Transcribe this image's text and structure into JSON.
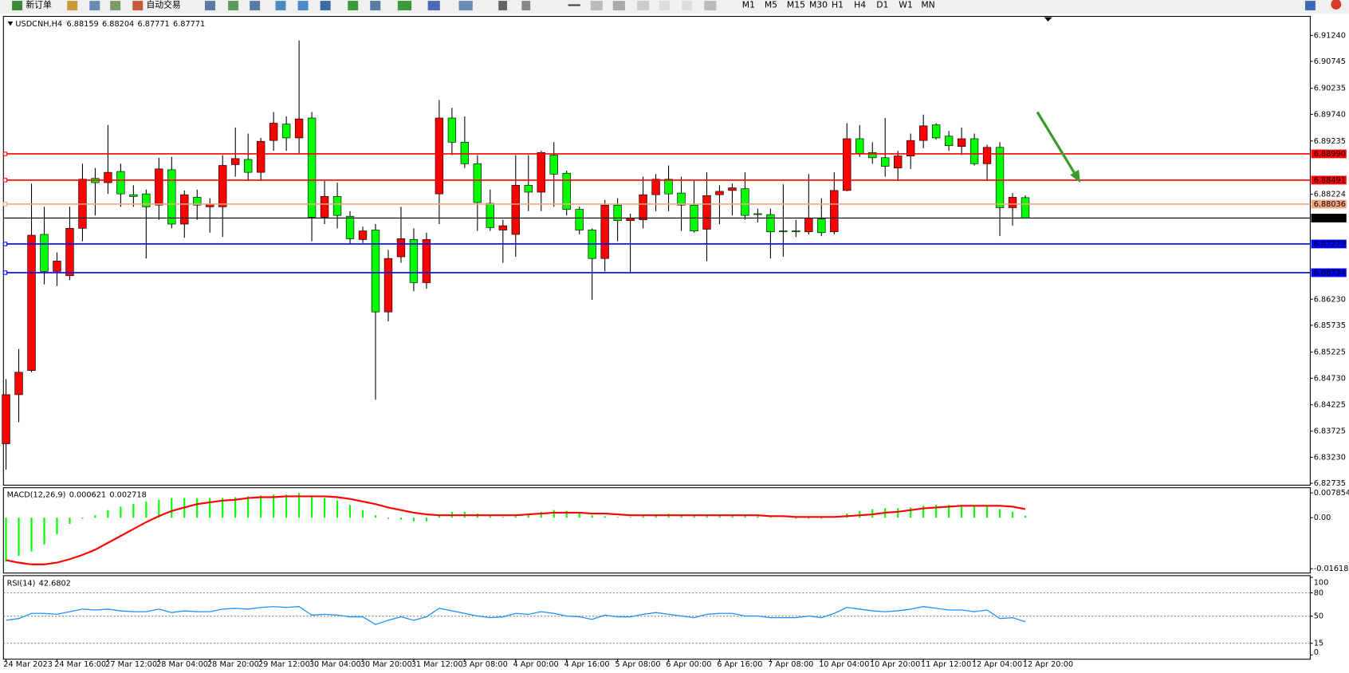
{
  "toolbar": {
    "new_order": "新订单",
    "auto_trading": "自动交易",
    "timeframes": [
      "M1",
      "M5",
      "M15",
      "M30",
      "H1",
      "H4",
      "D1",
      "W1",
      "MN"
    ]
  },
  "chart_data": [
    {
      "type": "candlestick",
      "title": "USDCNH,H4",
      "categories": [
        "24 Mar 2023",
        null,
        null,
        null,
        "24 Mar 16:00",
        null,
        null,
        null,
        "27 Mar 12:00",
        null,
        null,
        null,
        "28 Mar 04:00",
        null,
        null,
        null,
        "28 Mar 20:00",
        null,
        null,
        null,
        "29 Mar 12:00",
        null,
        null,
        null,
        "30 Mar 04:00",
        null,
        null,
        null,
        "30 Mar 20:00",
        null,
        null,
        null,
        "31 Mar 12:00",
        null,
        null,
        null,
        "3 Apr 08:00",
        null,
        null,
        null,
        "4 Apr 00:00",
        null,
        null,
        null,
        "4 Apr 16:00",
        null,
        null,
        null,
        "5 Apr 08:00",
        null,
        null,
        null,
        "6 Apr 00:00",
        null,
        null,
        null,
        "6 Apr 16:00",
        null,
        null,
        null,
        "7 Apr 08:00",
        null,
        null,
        null,
        "10 Apr 04:00",
        null,
        null,
        null,
        "10 Apr 20:00",
        null,
        null,
        null,
        "11 Apr 12:00",
        null,
        null,
        null,
        "12 Apr 04:00",
        null,
        null,
        null,
        "12 Apr 20:00"
      ],
      "open": [
        6.83486,
        6.84418,
        6.84876,
        6.87461,
        6.86758,
        6.86676,
        6.87576,
        6.88525,
        6.88443,
        6.88655,
        6.88214,
        6.8823,
        6.88017,
        6.88688,
        6.87657,
        6.88165,
        6.87985,
        6.87985,
        6.88786,
        6.88884,
        6.88639,
        6.89244,
        6.89555,
        6.89293,
        6.8967,
        6.87788,
        6.88181,
        6.87805,
        6.87363,
        6.87543,
        6.85989,
        6.87036,
        6.87363,
        6.86545,
        6.8823,
        6.8967,
        6.89212,
        6.88803,
        6.8805,
        6.87543,
        6.87461,
        6.88394,
        6.88263,
        6.88966,
        6.88623,
        6.87936,
        6.87543,
        6.87003,
        6.88017,
        6.87723,
        6.87739,
        6.88214,
        6.88508,
        6.88246,
        6.88017,
        6.87559,
        6.88214,
        6.88295,
        6.88328,
        6.87854,
        6.87837,
        6.87527,
        6.87527,
        6.8751,
        6.87756,
        6.8751,
        6.88295,
        6.89277,
        6.89015,
        6.88917,
        6.88721,
        6.8895,
        6.89244,
        6.89539,
        6.89326,
        6.8913,
        6.89277,
        6.88803,
        6.89113,
        6.87968,
        6.88159
      ],
      "high": [
        6.84713,
        6.85285,
        6.88426,
        6.87985,
        6.87118,
        6.87985,
        6.88803,
        6.88721,
        6.89539,
        6.88803,
        6.88394,
        6.88312,
        6.88917,
        6.88934,
        6.88295,
        6.88312,
        6.88148,
        6.88966,
        6.8949,
        6.89375,
        6.89293,
        6.89784,
        6.89702,
        6.91142,
        6.89784,
        6.88475,
        6.88443,
        6.87903,
        6.87608,
        6.87657,
        6.87167,
        6.87985,
        6.87576,
        6.87494,
        6.90013,
        6.89866,
        6.89702,
        6.88966,
        6.88312,
        6.87739,
        6.88966,
        6.88966,
        6.89048,
        6.89212,
        6.88672,
        6.87985,
        6.87576,
        6.88116,
        6.88148,
        6.87854,
        6.88557,
        6.88606,
        6.8877,
        6.88557,
        6.88475,
        6.88639,
        6.88394,
        6.88426,
        6.88639,
        6.87952,
        6.87952,
        6.8841,
        6.87739,
        6.88606,
        6.88148,
        6.88639,
        6.89572,
        6.89539,
        6.89212,
        6.8967,
        6.89048,
        6.89375,
        6.89735,
        6.89572,
        6.89424,
        6.8949,
        6.89375,
        6.89163,
        6.89212,
        6.88246,
        6.88204
      ],
      "low": [
        6.82995,
        6.83895,
        6.84844,
        6.86512,
        6.8648,
        6.86594,
        6.8733,
        6.87821,
        6.8823,
        6.87985,
        6.87985,
        6.87003,
        6.87739,
        6.87576,
        6.87396,
        6.87739,
        6.87494,
        6.87412,
        6.88557,
        6.88475,
        6.88475,
        6.89048,
        6.89048,
        6.88999,
        6.8733,
        6.87657,
        6.87576,
        6.87281,
        6.87298,
        6.8432,
        6.85809,
        6.86921,
        6.86381,
        6.8643,
        6.87657,
        6.88966,
        6.88721,
        6.87527,
        6.87527,
        6.86921,
        6.87036,
        6.87903,
        6.87903,
        6.87985,
        6.87821,
        6.87461,
        6.86218,
        6.86758,
        6.8733,
        6.86741,
        6.87576,
        6.87903,
        6.87903,
        6.87527,
        6.87494,
        6.86954,
        6.87657,
        6.87821,
        6.87739,
        6.8769,
        6.87003,
        6.87036,
        6.87412,
        6.87461,
        6.87428,
        6.87461,
        6.88279,
        6.88934,
        6.88803,
        6.88557,
        6.88475,
        6.88704,
        6.89097,
        6.89261,
        6.89048,
        6.88966,
        6.8877,
        6.88475,
        6.87428,
        6.87625,
        6.87771
      ],
      "close": [
        6.84418,
        6.84844,
        6.87445,
        6.86758,
        6.86954,
        6.87576,
        6.88508,
        6.88443,
        6.88639,
        6.8823,
        6.88181,
        6.87985,
        6.88704,
        6.87657,
        6.88214,
        6.88017,
        6.88034,
        6.8877,
        6.88901,
        6.88639,
        6.89228,
        6.89572,
        6.89293,
        6.89653,
        6.87788,
        6.88181,
        6.87821,
        6.87379,
        6.87527,
        6.85989,
        6.87003,
        6.87379,
        6.86545,
        6.87363,
        6.8967,
        6.89212,
        6.88803,
        6.88066,
        6.87592,
        6.87625,
        6.88394,
        6.88263,
        6.89015,
        6.88606,
        6.87936,
        6.87543,
        6.87003,
        6.88017,
        6.87723,
        6.87772,
        6.88214,
        6.88508,
        6.8823,
        6.88017,
        6.87527,
        6.88197,
        6.88279,
        6.88345,
        6.87821,
        6.87837,
        6.8751,
        6.8751,
        6.8751,
        6.87772,
        6.87494,
        6.88295,
        6.89277,
        6.88999,
        6.88917,
        6.88754,
        6.8895,
        6.89244,
        6.89522,
        6.89293,
        6.89146,
        6.89277,
        6.88803,
        6.89113,
        6.87968,
        6.88165,
        6.87771
      ],
      "up_color": "#ff0000",
      "down_color": "#00ff00",
      "ylim": [
        6.827,
        6.91584
      ],
      "yticks": [
        {
          "value": 6.9124,
          "label": "6.91240"
        },
        6.90745,
        6.90235,
        {
          "value": 6.8974,
          "label": "6.89740"
        },
        6.89235,
        6.88224,
        {
          "value": 6.8623,
          "label": "6.86230"
        },
        6.85735,
        6.85225,
        {
          "value": 6.8473,
          "label": "6.84730"
        },
        6.84225,
        6.83725,
        {
          "value": 6.8323,
          "label": "6.83230"
        },
        6.82735
      ],
      "grid": false,
      "hlines": [
        {
          "value": 6.8899,
          "label": "6.88990",
          "color": "#ff0000"
        },
        {
          "value": 6.88491,
          "color": "#ff0000"
        },
        {
          "value": 6.88036,
          "color": "#f4a582"
        },
        {
          "value": 6.87279,
          "color": "#0000ff"
        },
        {
          "value": 6.86734,
          "color": "#0000ff"
        }
      ]
    },
    {
      "type": "macd",
      "title": "MACD(12,26,9)",
      "histogram": [
        -0.01398,
        -0.01207,
        -0.01071,
        -0.00852,
        -0.00524,
        -0.00197,
        -0.00033,
        0.00076,
        0.0024,
        0.0035,
        0.00431,
        0.00513,
        0.00568,
        0.00623,
        0.00623,
        0.00623,
        0.00623,
        0.00623,
        0.0065,
        0.00677,
        0.00705,
        0.00732,
        0.00732,
        0.00785,
        0.00705,
        0.00623,
        0.00541,
        0.00404,
        0.0024,
        0.00076,
        -0.00033,
        -0.0006,
        -0.00115,
        -0.00115,
        0.00104,
        0.00186,
        0.00186,
        0.00131,
        0.00049,
        0.00022,
        0.00049,
        0.00076,
        0.00186,
        0.0024,
        0.00213,
        0.00158,
        0.00076,
        0.00049,
        0.00022,
        0.00022,
        0.00049,
        0.00104,
        0.00131,
        0.00104,
        0.00076,
        0.00076,
        0.00076,
        0.00076,
        0.00076,
        0.00049,
        0.00022,
        -5e-05,
        -0.00033,
        -0.00033,
        -0.00033,
        0.00022,
        0.00131,
        0.00213,
        0.00268,
        0.00295,
        0.00295,
        0.00322,
        0.00377,
        0.00404,
        0.00404,
        0.00404,
        0.00377,
        0.0035,
        0.00268,
        0.00186,
        0.000621
      ],
      "histogram_color": "#00ff00",
      "signal": [
        -0.01344,
        -0.01426,
        -0.0148,
        -0.0148,
        -0.01426,
        -0.01316,
        -0.0118,
        -0.01016,
        -0.00797,
        -0.00579,
        -0.0036,
        -0.00142,
        0.00049,
        0.00213,
        0.00322,
        0.00431,
        0.00486,
        0.00541,
        0.00568,
        0.00623,
        0.0065,
        0.0065,
        0.00677,
        0.00677,
        0.00677,
        0.00677,
        0.0065,
        0.00595,
        0.00513,
        0.00431,
        0.00322,
        0.0024,
        0.00158,
        0.00104,
        0.00076,
        0.00076,
        0.00076,
        0.00076,
        0.00076,
        0.00076,
        0.00076,
        0.00104,
        0.00131,
        0.00158,
        0.00158,
        0.00158,
        0.00131,
        0.00131,
        0.00104,
        0.00076,
        0.00076,
        0.00076,
        0.00076,
        0.00076,
        0.00076,
        0.00076,
        0.00076,
        0.00076,
        0.00076,
        0.00076,
        0.00049,
        0.00049,
        0.00022,
        0.00022,
        0.00022,
        0.00022,
        0.00049,
        0.00076,
        0.00104,
        0.00158,
        0.00186,
        0.0024,
        0.00295,
        0.00322,
        0.0035,
        0.00377,
        0.00377,
        0.00377,
        0.00377,
        0.0035,
        0.002718
      ],
      "signal_color": "#ff0000",
      "ylim": [
        -0.016185,
        0.007854
      ],
      "yticks": [
        -0.016185,
        {
          "value": 0,
          "label": "0.00"
        },
        0.007854
      ]
    },
    {
      "type": "line",
      "title": "RSI(14)",
      "values": [
        44.7,
        46.9,
        53.5,
        53.5,
        52.4,
        55.7,
        59.0,
        57.9,
        59.0,
        56.8,
        55.7,
        55.7,
        59.0,
        54.6,
        56.8,
        55.7,
        55.7,
        59.0,
        60.1,
        59.0,
        61.2,
        62.3,
        61.2,
        62.3,
        51.3,
        52.4,
        51.3,
        49.1,
        49.1,
        39.2,
        44.7,
        49.1,
        44.7,
        49.1,
        60.1,
        56.8,
        53.5,
        50.2,
        48.0,
        49.1,
        53.5,
        52.4,
        55.7,
        53.5,
        50.2,
        49.1,
        45.8,
        51.3,
        49.1,
        49.1,
        52.4,
        54.6,
        52.4,
        50.2,
        48.0,
        52.4,
        53.5,
        53.5,
        50.2,
        50.2,
        48.0,
        48.0,
        48.0,
        50.2,
        48.0,
        53.5,
        61.2,
        59.0,
        56.8,
        55.7,
        56.8,
        59.0,
        62.3,
        60.1,
        57.9,
        57.9,
        55.7,
        57.9,
        46.9,
        48.0,
        42.6802
      ],
      "color": "#1e90ff",
      "ylim": [
        0,
        100
      ],
      "yticks": [
        0,
        15,
        50,
        80,
        100
      ],
      "levels": [
        15,
        50,
        80
      ]
    }
  ]
}
